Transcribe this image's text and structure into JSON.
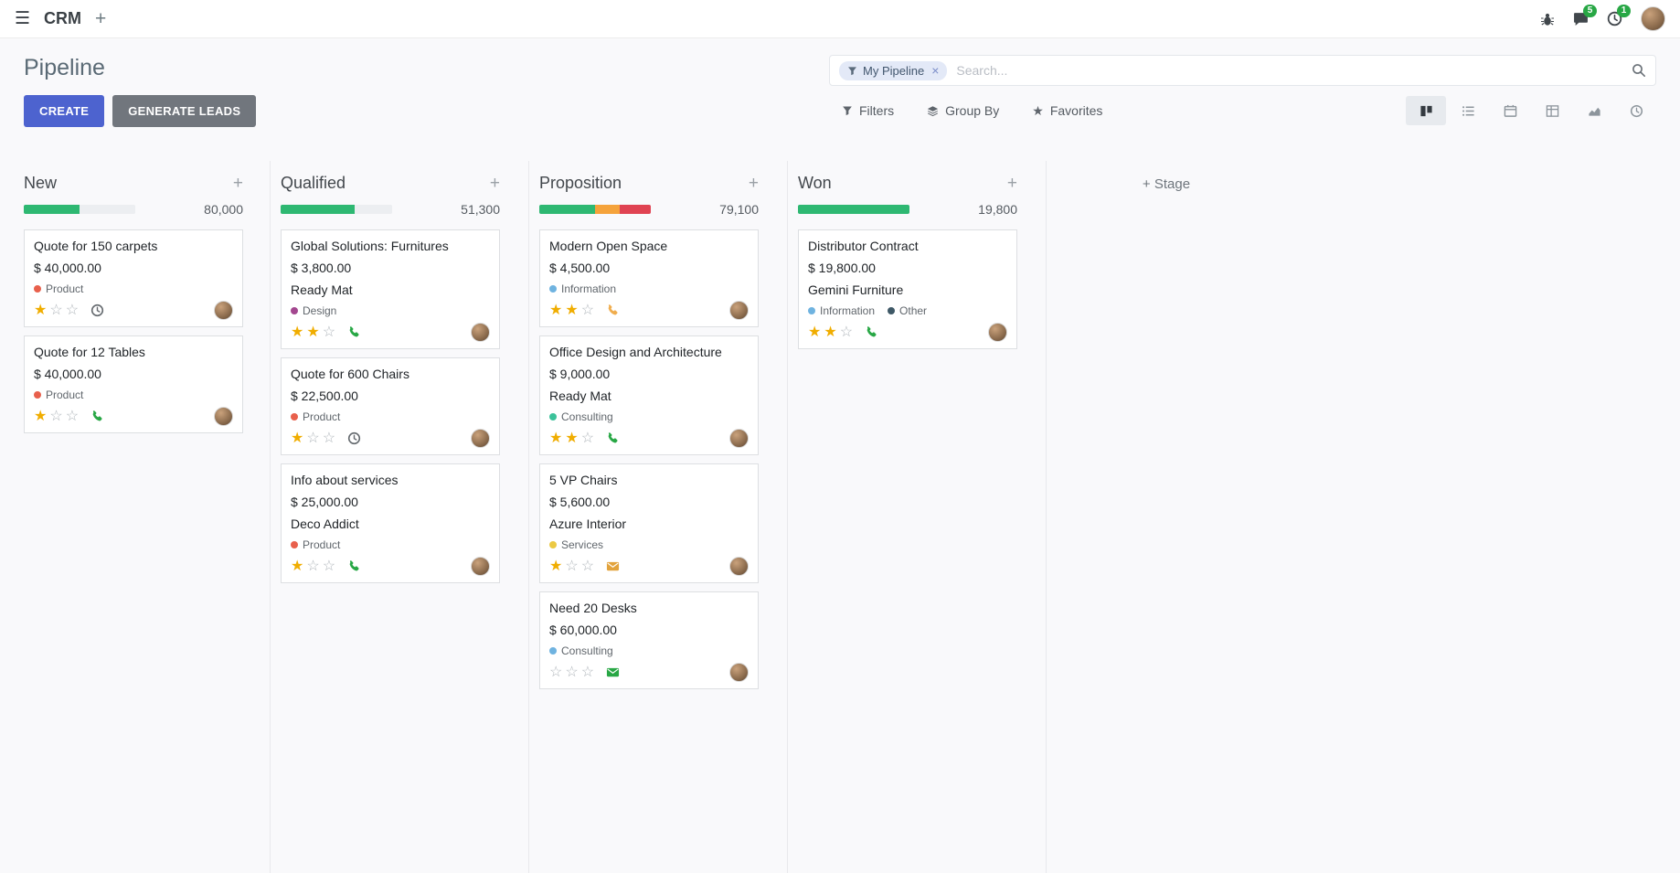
{
  "topbar": {
    "app_label": "CRM",
    "messages_badge": "5",
    "activities_badge": "1",
    "systray_icons": [
      "bug",
      "messages",
      "activities",
      "avatar"
    ]
  },
  "control_panel": {
    "title": "Pipeline",
    "create_label": "CREATE",
    "generate_leads_label": "GENERATE LEADS",
    "search": {
      "facet_label": "My Pipeline",
      "placeholder": "Search...",
      "remove_glyph": "×"
    },
    "filters_label": "Filters",
    "group_by_label": "Group By",
    "favorites_label": "Favorites",
    "view_switcher": [
      "kanban",
      "list",
      "calendar",
      "pivot",
      "graph",
      "activity"
    ],
    "active_view": "kanban"
  },
  "colors": {
    "accent_primary": "#4d63cf",
    "secondary_button": "#71767d",
    "success": "#28a745",
    "progress_green": "#2eb872",
    "progress_yellow": "#f5a33b",
    "progress_red": "#e04352",
    "star_filled": "#f0ad00"
  },
  "kanban": {
    "add_stage_label": "Stage",
    "columns": [
      {
        "name": "New",
        "total": "80,000",
        "progress": [
          {
            "color": "#2eb872",
            "pct": 50
          },
          {
            "color": "#eceef1",
            "pct": 50
          }
        ],
        "cards": [
          {
            "title": "Quote for 150 carpets",
            "amount": "$ 40,000.00",
            "tags": [
              {
                "label": "Product",
                "color": "#e8604c"
              }
            ],
            "stars": 1,
            "activity": {
              "icon": "clock",
              "color": "#64696e"
            }
          },
          {
            "title": "Quote for 12 Tables",
            "amount": "$ 40,000.00",
            "tags": [
              {
                "label": "Product",
                "color": "#e8604c"
              }
            ],
            "stars": 1,
            "activity": {
              "icon": "phone",
              "color": "#28a745"
            }
          }
        ]
      },
      {
        "name": "Qualified",
        "total": "51,300",
        "progress": [
          {
            "color": "#2eb872",
            "pct": 66
          },
          {
            "color": "#eceef1",
            "pct": 34
          }
        ],
        "cards": [
          {
            "title": "Global Solutions: Furnitures",
            "amount": "$ 3,800.00",
            "company": "Ready Mat",
            "tags": [
              {
                "label": "Design",
                "color": "#a3478f"
              }
            ],
            "stars": 2,
            "activity": {
              "icon": "phone",
              "color": "#28a745"
            }
          },
          {
            "title": "Quote for 600 Chairs",
            "amount": "$ 22,500.00",
            "tags": [
              {
                "label": "Product",
                "color": "#e8604c"
              }
            ],
            "stars": 1,
            "activity": {
              "icon": "clock",
              "color": "#64696e"
            }
          },
          {
            "title": "Info about services",
            "amount": "$ 25,000.00",
            "company": "Deco Addict",
            "tags": [
              {
                "label": "Product",
                "color": "#e8604c"
              }
            ],
            "stars": 1,
            "activity": {
              "icon": "phone",
              "color": "#28a745"
            }
          }
        ]
      },
      {
        "name": "Proposition",
        "total": "79,100",
        "progress": [
          {
            "color": "#2eb872",
            "pct": 50
          },
          {
            "color": "#f5a33b",
            "pct": 22
          },
          {
            "color": "#e04352",
            "pct": 28
          }
        ],
        "cards": [
          {
            "title": "Modern Open Space",
            "amount": "$ 4,500.00",
            "tags": [
              {
                "label": "Information",
                "color": "#6fb3e0"
              }
            ],
            "stars": 2,
            "activity": {
              "icon": "phone",
              "color": "#f0ad4e"
            }
          },
          {
            "title": "Office Design and Architecture",
            "amount": "$ 9,000.00",
            "company": "Ready Mat",
            "tags": [
              {
                "label": "Consulting",
                "color": "#3bc29a"
              }
            ],
            "stars": 2,
            "activity": {
              "icon": "phone",
              "color": "#28a745"
            }
          },
          {
            "title": "5 VP Chairs",
            "amount": "$ 5,600.00",
            "company": "Azure Interior",
            "tags": [
              {
                "label": "Services",
                "color": "#ecc943"
              }
            ],
            "stars": 1,
            "activity": {
              "icon": "envelope",
              "color": "#e2a33c"
            }
          },
          {
            "title": "Need 20 Desks",
            "amount": "$ 60,000.00",
            "tags": [
              {
                "label": "Consulting",
                "color": "#6fb3e0"
              }
            ],
            "stars": 0,
            "activity": {
              "icon": "envelope",
              "color": "#28a745"
            }
          }
        ]
      },
      {
        "name": "Won",
        "total": "19,800",
        "progress": [
          {
            "color": "#2eb872",
            "pct": 100
          }
        ],
        "cards": [
          {
            "title": "Distributor Contract",
            "amount": "$ 19,800.00",
            "company": "Gemini Furniture",
            "tags": [
              {
                "label": "Information",
                "color": "#6fb3e0"
              },
              {
                "label": "Other",
                "color": "#3e5866"
              }
            ],
            "stars": 2,
            "activity": {
              "icon": "phone",
              "color": "#28a745"
            }
          }
        ]
      }
    ]
  }
}
